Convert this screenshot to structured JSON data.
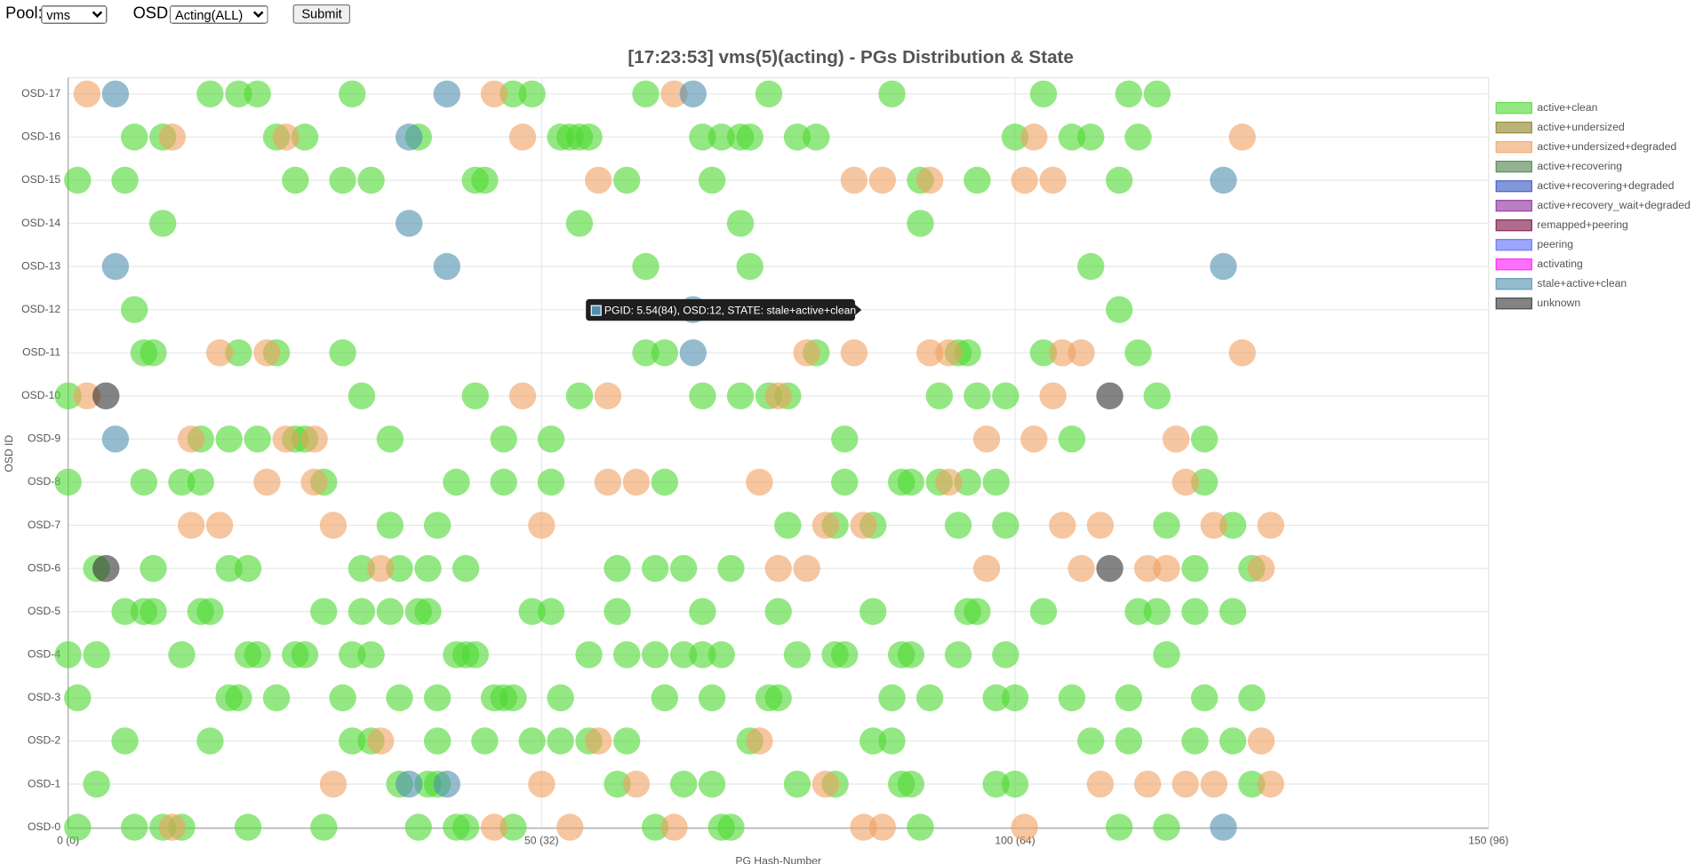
{
  "controls": {
    "pool_label": "Pool:",
    "pool_value": "vms",
    "osd_label": "OSD:",
    "osd_value": "Acting(ALL)",
    "submit": "Submit"
  },
  "chart_data": {
    "type": "scatter",
    "title": "[17:23:53]  vms(5)(acting) - PGs Distribution & State",
    "xlabel": "PG Hash-Number",
    "ylabel": "OSD ID",
    "xlim": [
      0,
      150
    ],
    "xticks": [
      {
        "value": 0,
        "label": "0 (0)"
      },
      {
        "value": 50,
        "label": "50 (32)"
      },
      {
        "value": 100,
        "label": "100 (64)"
      },
      {
        "value": 150,
        "label": "150 (96)"
      }
    ],
    "ylim": [
      0,
      17
    ],
    "yticks": [
      {
        "value": 0,
        "label": "OSD-0"
      },
      {
        "value": 1,
        "label": "OSD-1"
      },
      {
        "value": 2,
        "label": "OSD-2"
      },
      {
        "value": 3,
        "label": "OSD-3"
      },
      {
        "value": 4,
        "label": "OSD-4"
      },
      {
        "value": 5,
        "label": "OSD-5"
      },
      {
        "value": 6,
        "label": "OSD-6"
      },
      {
        "value": 7,
        "label": "OSD-7"
      },
      {
        "value": 8,
        "label": "OSD-8"
      },
      {
        "value": 9,
        "label": "OSD-9"
      },
      {
        "value": 10,
        "label": "OSD-10"
      },
      {
        "value": 11,
        "label": "OSD-11"
      },
      {
        "value": 12,
        "label": "OSD-12"
      },
      {
        "value": 13,
        "label": "OSD-13"
      },
      {
        "value": 14,
        "label": "OSD-14"
      },
      {
        "value": 15,
        "label": "OSD-15"
      },
      {
        "value": 16,
        "label": "OSD-16"
      },
      {
        "value": 17,
        "label": "OSD-17"
      }
    ],
    "grid": true,
    "legend": "right",
    "tooltip": "PGID: 5.54(84), OSD:12, STATE: stale+active+clean",
    "series": [
      {
        "name": "active+clean",
        "color": "#4cd931",
        "x": [
          15,
          18,
          20,
          30,
          47,
          49,
          61,
          74,
          87,
          103,
          112,
          115,
          7,
          10,
          22,
          25,
          37,
          52,
          53,
          54,
          55,
          67,
          69,
          71,
          72,
          77,
          79,
          100,
          106,
          108,
          113,
          1,
          6,
          24,
          29,
          32,
          43,
          44,
          59,
          68,
          90,
          96,
          111,
          10,
          54,
          71,
          90,
          61,
          72,
          108,
          7,
          111,
          8,
          9,
          18,
          22,
          29,
          61,
          63,
          79,
          94,
          95,
          103,
          113,
          0,
          31,
          43,
          54,
          67,
          71,
          74,
          76,
          92,
          96,
          99,
          115,
          14,
          17,
          20,
          24,
          25,
          34,
          46,
          51,
          82,
          106,
          120,
          0,
          8,
          12,
          14,
          27,
          41,
          46,
          51,
          63,
          82,
          88,
          89,
          92,
          95,
          98,
          120,
          34,
          39,
          76,
          81,
          85,
          94,
          99,
          116,
          123,
          3,
          9,
          17,
          19,
          31,
          35,
          38,
          42,
          58,
          62,
          65,
          70,
          119,
          125,
          6,
          8,
          9,
          14,
          15,
          27,
          31,
          34,
          37,
          38,
          49,
          51,
          58,
          67,
          75,
          85,
          95,
          96,
          103,
          113,
          115,
          119,
          123,
          0,
          3,
          12,
          19,
          20,
          24,
          25,
          30,
          32,
          41,
          42,
          43,
          55,
          59,
          62,
          65,
          67,
          69,
          77,
          81,
          82,
          88,
          89,
          94,
          99,
          116,
          1,
          17,
          18,
          22,
          29,
          35,
          39,
          45,
          46,
          47,
          52,
          63,
          68,
          74,
          75,
          87,
          91,
          98,
          100,
          106,
          112,
          120,
          125,
          6,
          15,
          30,
          32,
          39,
          44,
          49,
          52,
          55,
          59,
          72,
          85,
          87,
          108,
          112,
          119,
          123,
          3,
          35,
          38,
          39,
          58,
          65,
          68,
          77,
          81,
          88,
          89,
          98,
          100,
          125,
          1,
          7,
          10,
          12,
          19,
          27,
          37,
          41,
          42,
          47,
          62,
          69,
          70,
          90,
          111,
          116
        ],
        "values": [
          17,
          17,
          17,
          17,
          17,
          17,
          17,
          17,
          17,
          17,
          17,
          17,
          16,
          16,
          16,
          16,
          16,
          16,
          16,
          16,
          16,
          16,
          16,
          16,
          16,
          16,
          16,
          16,
          16,
          16,
          16,
          15,
          15,
          15,
          15,
          15,
          15,
          15,
          15,
          15,
          15,
          15,
          15,
          14,
          14,
          14,
          14,
          13,
          13,
          13,
          12,
          12,
          11,
          11,
          11,
          11,
          11,
          11,
          11,
          11,
          11,
          11,
          11,
          11,
          10,
          10,
          10,
          10,
          10,
          10,
          10,
          10,
          10,
          10,
          10,
          10,
          9,
          9,
          9,
          9,
          9,
          9,
          9,
          9,
          9,
          9,
          9,
          8,
          8,
          8,
          8,
          8,
          8,
          8,
          8,
          8,
          8,
          8,
          8,
          8,
          8,
          8,
          8,
          7,
          7,
          7,
          7,
          7,
          7,
          7,
          7,
          7,
          6,
          6,
          6,
          6,
          6,
          6,
          6,
          6,
          6,
          6,
          6,
          6,
          6,
          6,
          5,
          5,
          5,
          5,
          5,
          5,
          5,
          5,
          5,
          5,
          5,
          5,
          5,
          5,
          5,
          5,
          5,
          5,
          5,
          5,
          5,
          5,
          5,
          4,
          4,
          4,
          4,
          4,
          4,
          4,
          4,
          4,
          4,
          4,
          4,
          4,
          4,
          4,
          4,
          4,
          4,
          4,
          4,
          4,
          4,
          4,
          4,
          4,
          4,
          3,
          3,
          3,
          3,
          3,
          3,
          3,
          3,
          3,
          3,
          3,
          3,
          3,
          3,
          3,
          3,
          3,
          3,
          3,
          3,
          3,
          3,
          3,
          2,
          2,
          2,
          2,
          2,
          2,
          2,
          2,
          2,
          2,
          2,
          2,
          2,
          2,
          2,
          2,
          2,
          1,
          1,
          1,
          1,
          1,
          1,
          1,
          1,
          1,
          1,
          1,
          1,
          1,
          1,
          0,
          0,
          0,
          0,
          0,
          0,
          0,
          0,
          0,
          0,
          0,
          0,
          0,
          0,
          0,
          0
        ]
      },
      {
        "name": "active+undersized",
        "color": "#8b8020",
        "x": [],
        "values": []
      },
      {
        "name": "active+undersized+degraded",
        "color": "#f0a060",
        "x": [
          2,
          45,
          64,
          11,
          23,
          48,
          102,
          124,
          56,
          83,
          86,
          91,
          101,
          104,
          16,
          21,
          78,
          83,
          91,
          93,
          105,
          107,
          124,
          2,
          48,
          57,
          75,
          104,
          13,
          23,
          26,
          97,
          102,
          117,
          21,
          26,
          57,
          60,
          73,
          93,
          118,
          13,
          16,
          28,
          50,
          80,
          84,
          105,
          109,
          121,
          127,
          33,
          75,
          78,
          97,
          107,
          114,
          116,
          126,
          33,
          56,
          73,
          126,
          28,
          50,
          60,
          80,
          109,
          114,
          118,
          121,
          127,
          11,
          45,
          53,
          64,
          84,
          86,
          101
        ],
        "values": [
          17,
          17,
          17,
          16,
          16,
          16,
          16,
          16,
          15,
          15,
          15,
          15,
          15,
          15,
          11,
          11,
          11,
          11,
          11,
          11,
          11,
          11,
          11,
          10,
          10,
          10,
          10,
          10,
          9,
          9,
          9,
          9,
          9,
          9,
          8,
          8,
          8,
          8,
          8,
          8,
          8,
          7,
          7,
          7,
          7,
          7,
          7,
          7,
          7,
          7,
          7,
          6,
          6,
          6,
          6,
          6,
          6,
          6,
          6,
          2,
          2,
          2,
          2,
          1,
          1,
          1,
          1,
          1,
          1,
          1,
          1,
          1,
          0,
          0,
          0,
          0,
          0,
          0,
          0
        ]
      },
      {
        "name": "active+recovering",
        "color": "#4a7f4a",
        "x": [],
        "values": []
      },
      {
        "name": "active+recovering+degraded",
        "color": "#3050c0",
        "x": [],
        "values": []
      },
      {
        "name": "active+recovery_wait+degraded",
        "color": "#8a2a9a",
        "x": [],
        "values": []
      },
      {
        "name": "remapped+peering",
        "color": "#7a0a40",
        "x": [],
        "values": []
      },
      {
        "name": "peering",
        "color": "#5a6af8",
        "x": [],
        "values": []
      },
      {
        "name": "activating",
        "color": "#ff10ff",
        "x": [],
        "values": []
      },
      {
        "name": "stale+active+clean",
        "color": "#4f8fae",
        "x": [
          5,
          40,
          66,
          36,
          122,
          36,
          5,
          40,
          122,
          66,
          66,
          5,
          36,
          40,
          122
        ],
        "values": [
          17,
          17,
          17,
          16,
          15,
          14,
          13,
          13,
          13,
          12,
          11,
          9,
          1,
          1,
          0
        ]
      },
      {
        "name": "unknown",
        "color": "#303030",
        "x": [
          4,
          110,
          4,
          110
        ],
        "values": [
          10,
          10,
          6,
          6
        ]
      }
    ]
  }
}
